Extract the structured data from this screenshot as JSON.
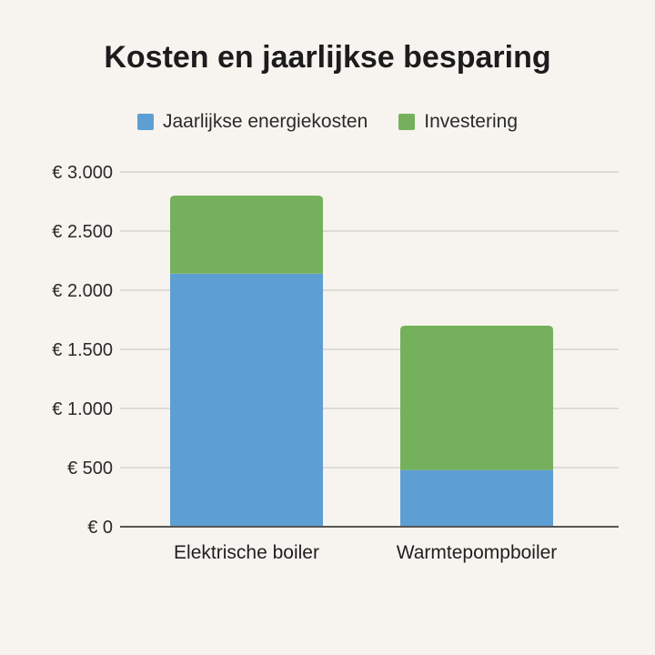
{
  "chart_data": {
    "type": "bar",
    "stacked": true,
    "title": "Kosten en jaarlijkse besparing",
    "categories": [
      "Elektrische boiler",
      "Warmtepompboiler"
    ],
    "series": [
      {
        "name": "Jaarlijkse energiekosten",
        "color": "#5e9fd3",
        "values": [
          2140,
          480
        ]
      },
      {
        "name": "Investering",
        "color": "#75b15c",
        "values": [
          660,
          1220
        ]
      }
    ],
    "yticks": [
      0,
      500,
      1000,
      1500,
      2000,
      2500,
      3000
    ],
    "ytick_labels": [
      "€ 0",
      "€ 500",
      "€ 1.000",
      "€ 1.500",
      "€ 2.000",
      "€ 2.500",
      "€ 3.000"
    ],
    "ylim": [
      0,
      3000
    ],
    "legend": "top-center",
    "grid": true,
    "gridline_color": "#d6d3ce"
  }
}
